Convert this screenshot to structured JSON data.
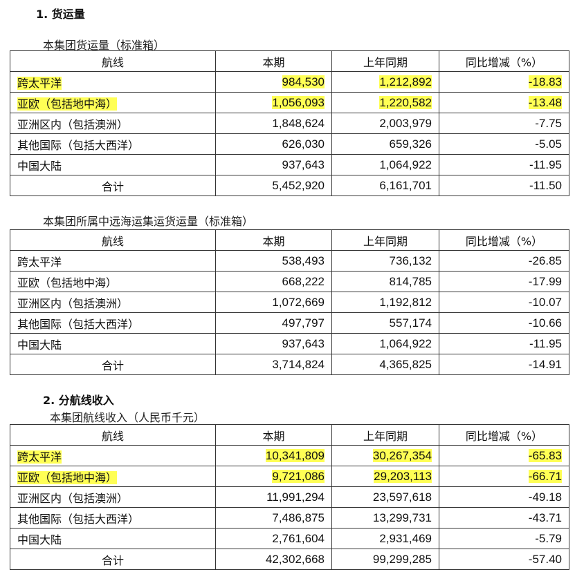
{
  "section1": {
    "title": "1. 货运量"
  },
  "section2": {
    "title": "2. 分航线收入"
  },
  "colors": {
    "highlight": "#ffff55"
  },
  "tables": [
    {
      "caption": "本集团货运量（标准箱）",
      "headers": [
        "航线",
        "本期",
        "上年同期",
        "同比增减（%）"
      ],
      "rows": [
        {
          "cells": [
            "跨太平洋",
            "984,530",
            "1,212,892",
            "-18.83"
          ],
          "highlighted": true
        },
        {
          "cells": [
            "亚欧（包括地中海）",
            "1,056,093",
            "1,220,582",
            "-13.48"
          ],
          "highlighted": true
        },
        {
          "cells": [
            "亚洲区内（包括澳洲）",
            "1,848,624",
            "2,003,979",
            "-7.75"
          ],
          "highlighted": false
        },
        {
          "cells": [
            "其他国际（包括大西洋）",
            "626,030",
            "659,326",
            "-5.05"
          ],
          "highlighted": false
        },
        {
          "cells": [
            "中国大陆",
            "937,643",
            "1,064,922",
            "-11.95"
          ],
          "highlighted": false
        },
        {
          "cells": [
            "合计",
            "5,452,920",
            "6,161,701",
            "-11.50"
          ],
          "highlighted": false,
          "total": true
        }
      ]
    },
    {
      "caption": "本集团所属中远海运集运货运量（标准箱）",
      "headers": [
        "航线",
        "本期",
        "上年同期",
        "同比增减（%）"
      ],
      "rows": [
        {
          "cells": [
            "跨太平洋",
            "538,493",
            "736,132",
            "-26.85"
          ],
          "highlighted": false
        },
        {
          "cells": [
            "亚欧（包括地中海）",
            "668,222",
            "814,785",
            "-17.99"
          ],
          "highlighted": false
        },
        {
          "cells": [
            "亚洲区内（包括澳洲）",
            "1,072,669",
            "1,192,812",
            "-10.07"
          ],
          "highlighted": false
        },
        {
          "cells": [
            "其他国际（包括大西洋）",
            "497,797",
            "557,174",
            "-10.66"
          ],
          "highlighted": false
        },
        {
          "cells": [
            "中国大陆",
            "937,643",
            "1,064,922",
            "-11.95"
          ],
          "highlighted": false
        },
        {
          "cells": [
            "合计",
            "3,714,824",
            "4,365,825",
            "-14.91"
          ],
          "highlighted": false,
          "total": true
        }
      ]
    },
    {
      "caption": "本集团航线收入（人民币千元）",
      "headers": [
        "航线",
        "本期",
        "上年同期",
        "同比增减（%）"
      ],
      "rows": [
        {
          "cells": [
            "跨太平洋",
            "10,341,809",
            "30,267,354",
            "-65.83"
          ],
          "highlighted": true
        },
        {
          "cells": [
            "亚欧（包括地中海）",
            "9,721,086",
            "29,203,113",
            "-66.71"
          ],
          "highlighted": true
        },
        {
          "cells": [
            "亚洲区内（包括澳洲）",
            "11,991,294",
            "23,597,618",
            "-49.18"
          ],
          "highlighted": false
        },
        {
          "cells": [
            "其他国际（包括大西洋）",
            "7,486,875",
            "13,299,731",
            "-43.71"
          ],
          "highlighted": false
        },
        {
          "cells": [
            "中国大陆",
            "2,761,604",
            "2,931,469",
            "-5.79"
          ],
          "highlighted": false
        },
        {
          "cells": [
            "合计",
            "42,302,668",
            "99,299,285",
            "-57.40"
          ],
          "highlighted": false,
          "total": true
        }
      ]
    }
  ]
}
